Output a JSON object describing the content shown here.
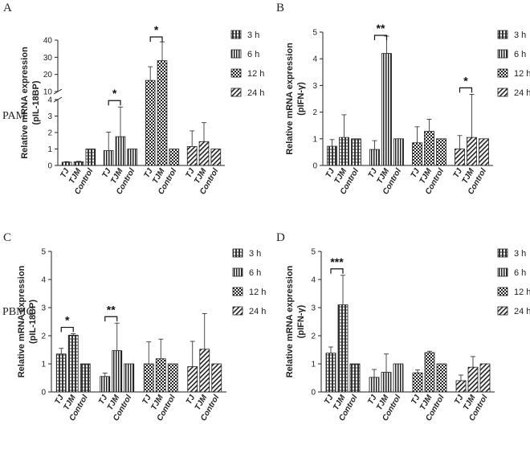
{
  "row_labels": {
    "top": "PAM",
    "bottom": "PBMC"
  },
  "legend": [
    "3 h",
    "6 h",
    "12 h",
    "24 h"
  ],
  "chart_data": [
    {
      "panel": "A",
      "type": "bar",
      "ylabel": [
        "Relative mRNA expression",
        "(pIL-18BP)"
      ],
      "axis_break": true,
      "lower_ticks": [
        "0",
        "1",
        "2",
        "3",
        "4"
      ],
      "upper_ticks": [
        "10",
        "20",
        "30",
        "40"
      ],
      "categories": [
        "TJ",
        "TJM",
        "Control"
      ],
      "groups": [
        {
          "name": "3 h",
          "values": [
            0.2,
            0.22,
            1.0
          ],
          "errors": [
            0.03,
            0.03,
            0
          ]
        },
        {
          "name": "6 h",
          "values": [
            0.9,
            1.75,
            1.0
          ],
          "errors": [
            1.12,
            1.8,
            0
          ]
        },
        {
          "name": "12 h",
          "values": [
            16.5,
            28.0,
            1.0
          ],
          "errors": [
            8.0,
            11.0,
            0
          ]
        },
        {
          "name": "24 h",
          "values": [
            1.15,
            1.45,
            1.0
          ],
          "errors": [
            0.95,
            1.15,
            0
          ]
        }
      ],
      "significance": [
        {
          "group": "6 h",
          "label": "*"
        },
        {
          "group": "12 h",
          "label": "*"
        }
      ]
    },
    {
      "panel": "B",
      "type": "bar",
      "ylabel": [
        "Relative mRNA expression",
        "(pIFN-γ)"
      ],
      "ylim": [
        0,
        5
      ],
      "yticks": [
        "0",
        "1",
        "2",
        "3",
        "4",
        "5"
      ],
      "categories": [
        "TJ",
        "TJM",
        "Control"
      ],
      "groups": [
        {
          "name": "3 h",
          "values": [
            0.72,
            1.05,
            1.0
          ],
          "errors": [
            0.25,
            0.85,
            0
          ]
        },
        {
          "name": "6 h",
          "values": [
            0.6,
            4.2,
            1.0
          ],
          "errors": [
            0.33,
            0.65,
            0
          ]
        },
        {
          "name": "12 h",
          "values": [
            0.85,
            1.28,
            1.0
          ],
          "errors": [
            0.6,
            0.45,
            0
          ]
        },
        {
          "name": "24 h",
          "values": [
            0.62,
            1.05,
            1.0
          ],
          "errors": [
            0.5,
            1.62,
            0
          ]
        }
      ],
      "significance": [
        {
          "group": "6 h",
          "label": "**"
        },
        {
          "group": "24 h",
          "label": "*"
        }
      ]
    },
    {
      "panel": "C",
      "type": "bar",
      "ylabel": [
        "Relative mRNA expression",
        "(pIL-18BP)"
      ],
      "ylim": [
        0,
        5
      ],
      "yticks": [
        "0",
        "1",
        "2",
        "3",
        "4",
        "5"
      ],
      "categories": [
        "TJ",
        "TJM",
        "Control"
      ],
      "groups": [
        {
          "name": "3 h",
          "values": [
            1.35,
            2.02,
            1.0
          ],
          "errors": [
            0.2,
            0.05,
            0
          ]
        },
        {
          "name": "6 h",
          "values": [
            0.55,
            1.47,
            1.0
          ],
          "errors": [
            0.12,
            0.98,
            0
          ]
        },
        {
          "name": "12 h",
          "values": [
            1.0,
            1.18,
            1.0
          ],
          "errors": [
            0.78,
            0.7,
            0
          ]
        },
        {
          "name": "24 h",
          "values": [
            0.9,
            1.52,
            1.0
          ],
          "errors": [
            0.9,
            1.27,
            0
          ]
        }
      ],
      "significance": [
        {
          "group": "3 h",
          "label": "*"
        },
        {
          "group": "6 h",
          "label": "**"
        }
      ]
    },
    {
      "panel": "D",
      "type": "bar",
      "ylabel": [
        "Relative mRNA expression",
        "(pIFN-γ)"
      ],
      "ylim": [
        0,
        5
      ],
      "yticks": [
        "0",
        "1",
        "2",
        "3",
        "4",
        "5"
      ],
      "categories": [
        "TJ",
        "TJM",
        "Control"
      ],
      "groups": [
        {
          "name": "3 h",
          "values": [
            1.38,
            3.1,
            1.0
          ],
          "errors": [
            0.22,
            1.05,
            0
          ]
        },
        {
          "name": "6 h",
          "values": [
            0.52,
            0.7,
            1.0
          ],
          "errors": [
            0.28,
            0.65,
            0
          ]
        },
        {
          "name": "12 h",
          "values": [
            0.68,
            1.4,
            1.0
          ],
          "errors": [
            0.1,
            0.05,
            0
          ]
        },
        {
          "name": "24 h",
          "values": [
            0.4,
            0.88,
            1.0
          ],
          "errors": [
            0.2,
            0.38,
            0
          ]
        }
      ],
      "significance": [
        {
          "group": "3 h",
          "label": "***"
        }
      ]
    }
  ]
}
